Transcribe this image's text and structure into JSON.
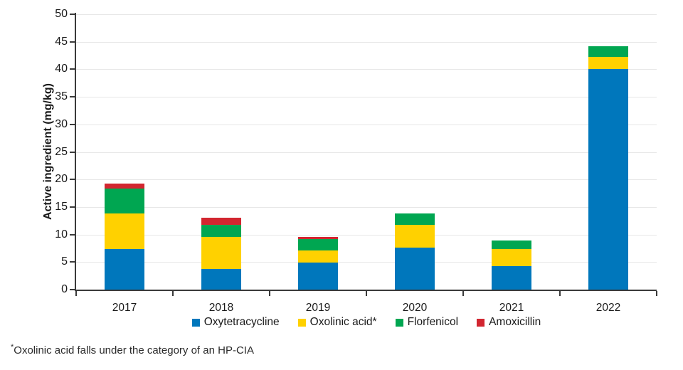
{
  "chart_data": {
    "type": "bar",
    "stacked": true,
    "title": "",
    "xlabel": "",
    "ylabel": "Active ingredient (mg/kg)",
    "ylim": [
      0,
      50
    ],
    "ytick_step": 5,
    "yticks": [
      "0",
      "5",
      "10",
      "15",
      "20",
      "25",
      "30",
      "35",
      "40",
      "45",
      "50"
    ],
    "grid": "horizontal",
    "legend_position": "bottom",
    "categories": [
      "2017",
      "2018",
      "2019",
      "2020",
      "2021",
      "2022"
    ],
    "series": [
      {
        "name": "Oxytetracycline",
        "color": "#0077BC",
        "values": [
          7.3,
          3.8,
          4.9,
          7.6,
          4.3,
          40.0
        ]
      },
      {
        "name": "Oxolinic acid*",
        "color": "#FFD100",
        "values": [
          6.5,
          5.7,
          2.2,
          4.2,
          3.1,
          2.2
        ]
      },
      {
        "name": "Florfenicol",
        "color": "#00A651",
        "values": [
          4.5,
          2.2,
          2.1,
          2.0,
          1.5,
          2.0
        ]
      },
      {
        "name": "Amoxicillin",
        "color": "#D22630",
        "values": [
          1.0,
          1.3,
          0.4,
          0.0,
          0.0,
          0.0
        ]
      }
    ],
    "totals": [
      19.3,
      13.0,
      9.6,
      13.8,
      8.9,
      44.2
    ]
  },
  "footnote": {
    "asterisk": "*",
    "text": "Oxolinic acid falls under the category of an HP-CIA"
  },
  "colors": {
    "axis": "#3a3a3a",
    "grid": "#e7e7e7",
    "text": "#1a1a1a"
  }
}
